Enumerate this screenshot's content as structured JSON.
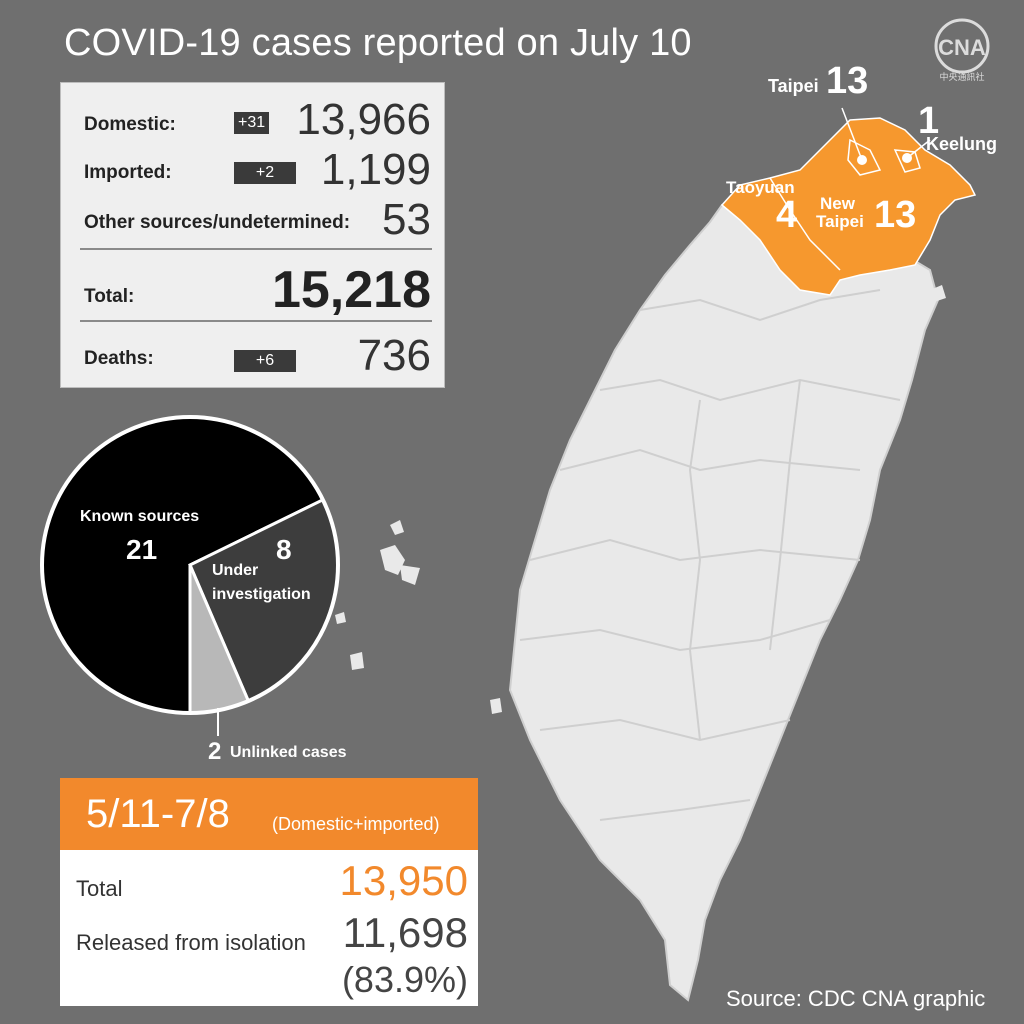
{
  "title": "COVID-19 cases reported on July 10",
  "logo": {
    "text": "CNA",
    "subtext": "中央通訊社"
  },
  "summary": {
    "domestic": {
      "label": "Domestic:",
      "change": "+31",
      "value": "13,966"
    },
    "imported": {
      "label": "Imported:",
      "change": "+2",
      "value": "1,199"
    },
    "other": {
      "label": "Other sources/undetermined:",
      "value": "53"
    },
    "total": {
      "label": "Total:",
      "value": "15,218"
    },
    "deaths": {
      "label": "Deaths:",
      "change": "+6",
      "value": "736"
    }
  },
  "pie": {
    "slices": [
      {
        "label": "Known sources",
        "value": 21,
        "color": "#000000"
      },
      {
        "label": "Under investigation",
        "value": 8,
        "color": "#3d3d3d"
      },
      {
        "label": "Unlinked cases",
        "value": 2,
        "color": "#b8b8b8"
      }
    ],
    "labels": {
      "known_label": "Known sources",
      "known_value": "21",
      "under_value": "8",
      "under_label_1": "Under",
      "under_label_2": "investigation",
      "unlinked_value": "2",
      "unlinked_label": "Unlinked cases"
    }
  },
  "period": {
    "range": "5/11-7/8",
    "note": "(Domestic+imported)",
    "total_label": "Total",
    "total_value": "13,950",
    "released_label": "Released from isolation",
    "released_value": "11,698",
    "released_pct": "(83.9%)"
  },
  "map": {
    "highlight_color": "#f6982e",
    "base_color": "#e9e9e9",
    "regions": [
      {
        "name": "Taipei",
        "cases": "13"
      },
      {
        "name": "Keelung",
        "cases": "1"
      },
      {
        "name": "Taoyuan",
        "cases": "4"
      },
      {
        "name_line1": "New",
        "name_line2": "Taipei",
        "cases": "13"
      }
    ]
  },
  "source": "Source: CDC  CNA graphic"
}
